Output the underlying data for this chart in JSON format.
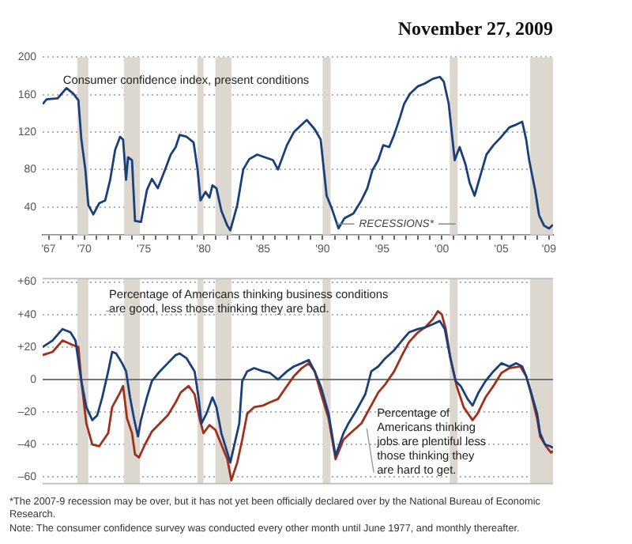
{
  "chart_data": [
    {
      "type": "line",
      "title": "November 27, 2009",
      "x": [
        "1967-01",
        "1967-05",
        "1968-04",
        "1969-01",
        "1969-08",
        "1970-01",
        "1970-04",
        "1970-08",
        "1970-11",
        "1971-04",
        "1971-10",
        "1972-04",
        "1972-09",
        "1973-02",
        "1973-07",
        "1973-10",
        "1974-01",
        "1974-03",
        "1974-07",
        "1974-10",
        "1975-04",
        "1975-10",
        "1976-03",
        "1976-09",
        "1977-04",
        "1977-10",
        "1978-03",
        "1978-07",
        "1979-02",
        "1979-09",
        "1980-01",
        "1980-04",
        "1980-09",
        "1981-01",
        "1981-04",
        "1981-08",
        "1982-01",
        "1982-07",
        "1982-10",
        "1983-05",
        "1983-11",
        "1984-05",
        "1985-01",
        "1985-09",
        "1986-05",
        "1986-10",
        "1987-07",
        "1988-02",
        "1988-10",
        "1989-03",
        "1989-11",
        "1990-05",
        "1990-11",
        "1991-04",
        "1991-11",
        "1992-05",
        "1993-02",
        "1993-10",
        "1994-04",
        "1994-09",
        "1995-03",
        "1995-08",
        "1996-02",
        "1996-07",
        "1997-01",
        "1997-05",
        "1997-11",
        "1998-07",
        "1999-02",
        "1999-10",
        "2000-05",
        "2000-09",
        "2001-02",
        "2001-08",
        "2002-01",
        "2002-07",
        "2002-11",
        "2003-04",
        "2003-10",
        "2004-04",
        "2004-11",
        "2005-07",
        "2006-03",
        "2006-10",
        "2007-04",
        "2007-08",
        "2007-11",
        "2008-05",
        "2008-09",
        "2009-02",
        "2009-07",
        "2009-11"
      ],
      "series": [
        {
          "name": "Consumer confidence index, present conditions",
          "color": "#1a3f7a",
          "values": [
            150,
            155,
            156,
            167,
            161,
            154,
            112,
            80,
            42,
            32,
            44,
            47,
            69,
            101,
            115,
            112,
            69,
            93,
            90,
            25,
            24,
            58,
            70,
            60,
            79,
            96,
            104,
            117,
            115,
            109,
            80,
            47,
            56,
            50,
            63,
            60,
            36,
            20,
            15,
            42,
            80,
            91,
            96,
            93,
            90,
            80,
            106,
            120,
            128,
            133,
            123,
            112,
            52,
            39,
            17,
            28,
            33,
            47,
            60,
            79,
            90,
            106,
            104,
            117,
            136,
            150,
            161,
            169,
            172,
            177,
            179,
            174,
            150,
            90,
            104,
            85,
            66,
            52,
            74,
            96,
            106,
            115,
            125,
            128,
            131,
            112,
            90,
            58,
            31,
            20,
            17,
            21
          ]
        }
      ],
      "xlim": [
        "1967-01",
        "2009-11"
      ],
      "xticks": [
        {
          "value": "1967-07",
          "label": "'67"
        },
        {
          "value": "1968-07",
          "label": null
        },
        {
          "value": "1969-07",
          "label": null
        },
        {
          "value": "1970-07",
          "label": "'70"
        },
        {
          "value": "1971-07",
          "label": null
        },
        {
          "value": "1972-07",
          "label": null
        },
        {
          "value": "1973-07",
          "label": null
        },
        {
          "value": "1974-07",
          "label": null
        },
        {
          "value": "1975-07",
          "label": "'75"
        },
        {
          "value": "1976-07",
          "label": null
        },
        {
          "value": "1977-07",
          "label": null
        },
        {
          "value": "1978-07",
          "label": null
        },
        {
          "value": "1979-07",
          "label": null
        },
        {
          "value": "1980-07",
          "label": "'80"
        },
        {
          "value": "1981-07",
          "label": null
        },
        {
          "value": "1982-07",
          "label": null
        },
        {
          "value": "1983-07",
          "label": null
        },
        {
          "value": "1984-07",
          "label": null
        },
        {
          "value": "1985-07",
          "label": "'85"
        },
        {
          "value": "1986-07",
          "label": null
        },
        {
          "value": "1987-07",
          "label": null
        },
        {
          "value": "1988-07",
          "label": null
        },
        {
          "value": "1989-07",
          "label": null
        },
        {
          "value": "1990-07",
          "label": "'90"
        },
        {
          "value": "1991-07",
          "label": null
        },
        {
          "value": "1992-07",
          "label": null
        },
        {
          "value": "1993-07",
          "label": null
        },
        {
          "value": "1994-07",
          "label": null
        },
        {
          "value": "1995-07",
          "label": "'95"
        },
        {
          "value": "1996-07",
          "label": null
        },
        {
          "value": "1997-07",
          "label": null
        },
        {
          "value": "1998-07",
          "label": null
        },
        {
          "value": "1999-07",
          "label": null
        },
        {
          "value": "2000-07",
          "label": "'00"
        },
        {
          "value": "2001-07",
          "label": null
        },
        {
          "value": "2002-07",
          "label": null
        },
        {
          "value": "2003-07",
          "label": null
        },
        {
          "value": "2004-07",
          "label": null
        },
        {
          "value": "2005-07",
          "label": "'05"
        },
        {
          "value": "2006-07",
          "label": null
        },
        {
          "value": "2007-07",
          "label": null
        },
        {
          "value": "2008-07",
          "label": null
        },
        {
          "value": "2009-07",
          "label": "'09"
        }
      ],
      "ylim": [
        10,
        200
      ],
      "yticks": [
        40,
        80,
        120,
        160,
        200
      ],
      "grid": "y",
      "bands": [
        {
          "axis": "x",
          "from": "1969-12",
          "to": "1970-11",
          "color": "#dcd8cf"
        },
        {
          "axis": "x",
          "from": "1973-11",
          "to": "1975-03",
          "color": "#dcd8cf"
        },
        {
          "axis": "x",
          "from": "1980-01",
          "to": "1980-07",
          "color": "#dcd8cf"
        },
        {
          "axis": "x",
          "from": "1981-07",
          "to": "1982-11",
          "color": "#dcd8cf"
        },
        {
          "axis": "x",
          "from": "1990-07",
          "to": "1991-03",
          "color": "#dcd8cf"
        },
        {
          "axis": "x",
          "from": "2001-03",
          "to": "2001-11",
          "color": "#dcd8cf"
        },
        {
          "axis": "x",
          "from": "2007-12",
          "to": "2009-11",
          "color": "#dcd8cf"
        }
      ],
      "annotations": [
        "RECESSIONS*"
      ]
    },
    {
      "type": "line",
      "series": [
        {
          "name": "Percentage of Americans thinking business conditions are good, less those thinking they are bad.",
          "color": "#1a3f7a",
          "x": [
            "1967-01",
            "1967-11",
            "1968-09",
            "1969-05",
            "1969-10",
            "1970-04",
            "1970-09",
            "1971-03",
            "1971-08",
            "1972-01",
            "1972-07",
            "1972-11",
            "1973-03",
            "1973-09",
            "1974-01",
            "1974-05",
            "1974-09",
            "1975-01",
            "1975-04",
            "1975-10",
            "1976-03",
            "1976-11",
            "1977-07",
            "1978-03",
            "1978-07",
            "1979-02",
            "1979-10",
            "1980-02",
            "1980-05",
            "1980-10",
            "1981-04",
            "1981-08",
            "1982-01",
            "1982-10",
            "1983-07",
            "1983-10",
            "1984-03",
            "1984-10",
            "1985-07",
            "1986-02",
            "1986-10",
            "1987-07",
            "1988-02",
            "1988-10",
            "1989-05",
            "1989-11",
            "1990-05",
            "1991-01",
            "1991-08",
            "1992-04",
            "1992-09",
            "1993-05",
            "1994-02",
            "1994-08",
            "1995-03",
            "1995-10",
            "1996-07",
            "1997-03",
            "1997-10",
            "1998-07",
            "1999-02",
            "1999-10",
            "2000-05",
            "2000-10",
            "2001-03",
            "2001-09",
            "2002-02",
            "2002-09",
            "2003-02",
            "2003-08",
            "2004-03",
            "2004-11",
            "2005-07",
            "2006-03",
            "2006-10",
            "2007-04",
            "2007-08",
            "2008-01",
            "2008-07",
            "2008-10",
            "2009-03",
            "2009-08",
            "2009-11"
          ],
          "values": [
            20,
            24,
            31,
            29,
            24,
            -1,
            -17,
            -25,
            -22,
            -11,
            5,
            17,
            16,
            10,
            5,
            -11,
            -24,
            -35,
            -25,
            -11,
            -1,
            5,
            10,
            15,
            16,
            13,
            5,
            -11,
            -27,
            -21,
            -11,
            -17,
            -33,
            -51,
            -27,
            -1,
            5,
            7,
            5,
            4,
            0,
            5,
            8,
            10,
            12,
            5,
            -4,
            -21,
            -47,
            -33,
            -27,
            -19,
            -9,
            5,
            8,
            13,
            18,
            24,
            29,
            31,
            32,
            34,
            36,
            31,
            15,
            -1,
            -4,
            -12,
            -16,
            -8,
            -1,
            5,
            10,
            8,
            10,
            8,
            2,
            -8,
            -21,
            -33,
            -40,
            -41,
            -42
          ]
        },
        {
          "name": "Percentage of Americans thinking jobs are plentiful less those thinking they are hard to get.",
          "color": "#a0301c",
          "x": [
            "1967-01",
            "1967-11",
            "1968-09",
            "1969-08",
            "1970-01",
            "1970-04",
            "1970-09",
            "1971-03",
            "1971-10",
            "1972-07",
            "1972-11",
            "1973-07",
            "1973-10",
            "1974-02",
            "1974-07",
            "1974-10",
            "1975-02",
            "1975-08",
            "1976-03",
            "1976-11",
            "1977-07",
            "1978-03",
            "1978-08",
            "1979-04",
            "1979-10",
            "1980-03",
            "1980-07",
            "1981-01",
            "1981-07",
            "1982-01",
            "1982-07",
            "1982-11",
            "1983-05",
            "1983-10",
            "1984-03",
            "1984-10",
            "1985-07",
            "1986-02",
            "1986-10",
            "1987-07",
            "1988-02",
            "1988-10",
            "1989-05",
            "1989-11",
            "1990-05",
            "1991-01",
            "1991-08",
            "1992-04",
            "1992-11",
            "1993-10",
            "1994-07",
            "1995-03",
            "1995-10",
            "1996-07",
            "1997-03",
            "1997-10",
            "1998-07",
            "1999-02",
            "1999-10",
            "2000-03",
            "2000-07",
            "2000-11",
            "2001-04",
            "2001-10",
            "2002-05",
            "2003-02",
            "2003-07",
            "2004-03",
            "2004-11",
            "2005-07",
            "2006-03",
            "2007-02",
            "2007-08",
            "2008-01",
            "2008-07",
            "2008-10",
            "2009-04",
            "2009-09",
            "2009-11"
          ],
          "values": [
            15,
            17,
            24,
            21,
            20,
            -1,
            -27,
            -40,
            -41,
            -33,
            -17,
            -8,
            -4,
            -24,
            -33,
            -46,
            -48,
            -40,
            -32,
            -27,
            -22,
            -14,
            -8,
            -4,
            -9,
            -24,
            -33,
            -28,
            -31,
            -40,
            -49,
            -62,
            -51,
            -37,
            -21,
            -17,
            -16,
            -14,
            -12,
            -4,
            2,
            7,
            10,
            5,
            -8,
            -24,
            -49,
            -37,
            -33,
            -27,
            -17,
            -8,
            -3,
            5,
            15,
            23,
            29,
            32,
            37,
            42,
            40,
            31,
            12,
            -4,
            -17,
            -25,
            -21,
            -11,
            -4,
            4,
            7,
            8,
            2,
            -9,
            -24,
            -35,
            -41,
            -45,
            -44
          ]
        }
      ],
      "xlim": [
        "1967-01",
        "2009-11"
      ],
      "ylim": [
        -64,
        62
      ],
      "yticks": [
        {
          "value": 60,
          "label": "+60"
        },
        {
          "value": 40,
          "label": "+40"
        },
        {
          "value": 20,
          "label": "+20"
        },
        0,
        {
          "value": -20,
          "label": "–20"
        },
        {
          "value": -40,
          "label": "–40"
        },
        {
          "value": -60,
          "label": "–60"
        }
      ],
      "grid": "y",
      "tick_labels": "y",
      "ref_lines": [
        {
          "axis": "y",
          "value": 0,
          "color": "#777777"
        }
      ],
      "bands": [
        {
          "axis": "x",
          "from": "1969-12",
          "to": "1970-11",
          "color": "#dcd8cf"
        },
        {
          "axis": "x",
          "from": "1973-11",
          "to": "1975-03",
          "color": "#dcd8cf"
        },
        {
          "axis": "x",
          "from": "1980-01",
          "to": "1980-07",
          "color": "#dcd8cf"
        },
        {
          "axis": "x",
          "from": "1981-07",
          "to": "1982-11",
          "color": "#dcd8cf"
        },
        {
          "axis": "x",
          "from": "1990-07",
          "to": "1991-03",
          "color": "#dcd8cf"
        },
        {
          "axis": "x",
          "from": "2001-03",
          "to": "2001-11",
          "color": "#dcd8cf"
        },
        {
          "axis": "x",
          "from": "2007-12",
          "to": "2009-11",
          "color": "#dcd8cf"
        }
      ],
      "annotations": [
        "*The 2007-9 recession may be over, but it has not yet been officially declared over by the National Bureau of Economic Research.",
        "Note: The consumer confidence survey was conducted every other month until June 1977, and monthly thereafter."
      ]
    }
  ]
}
